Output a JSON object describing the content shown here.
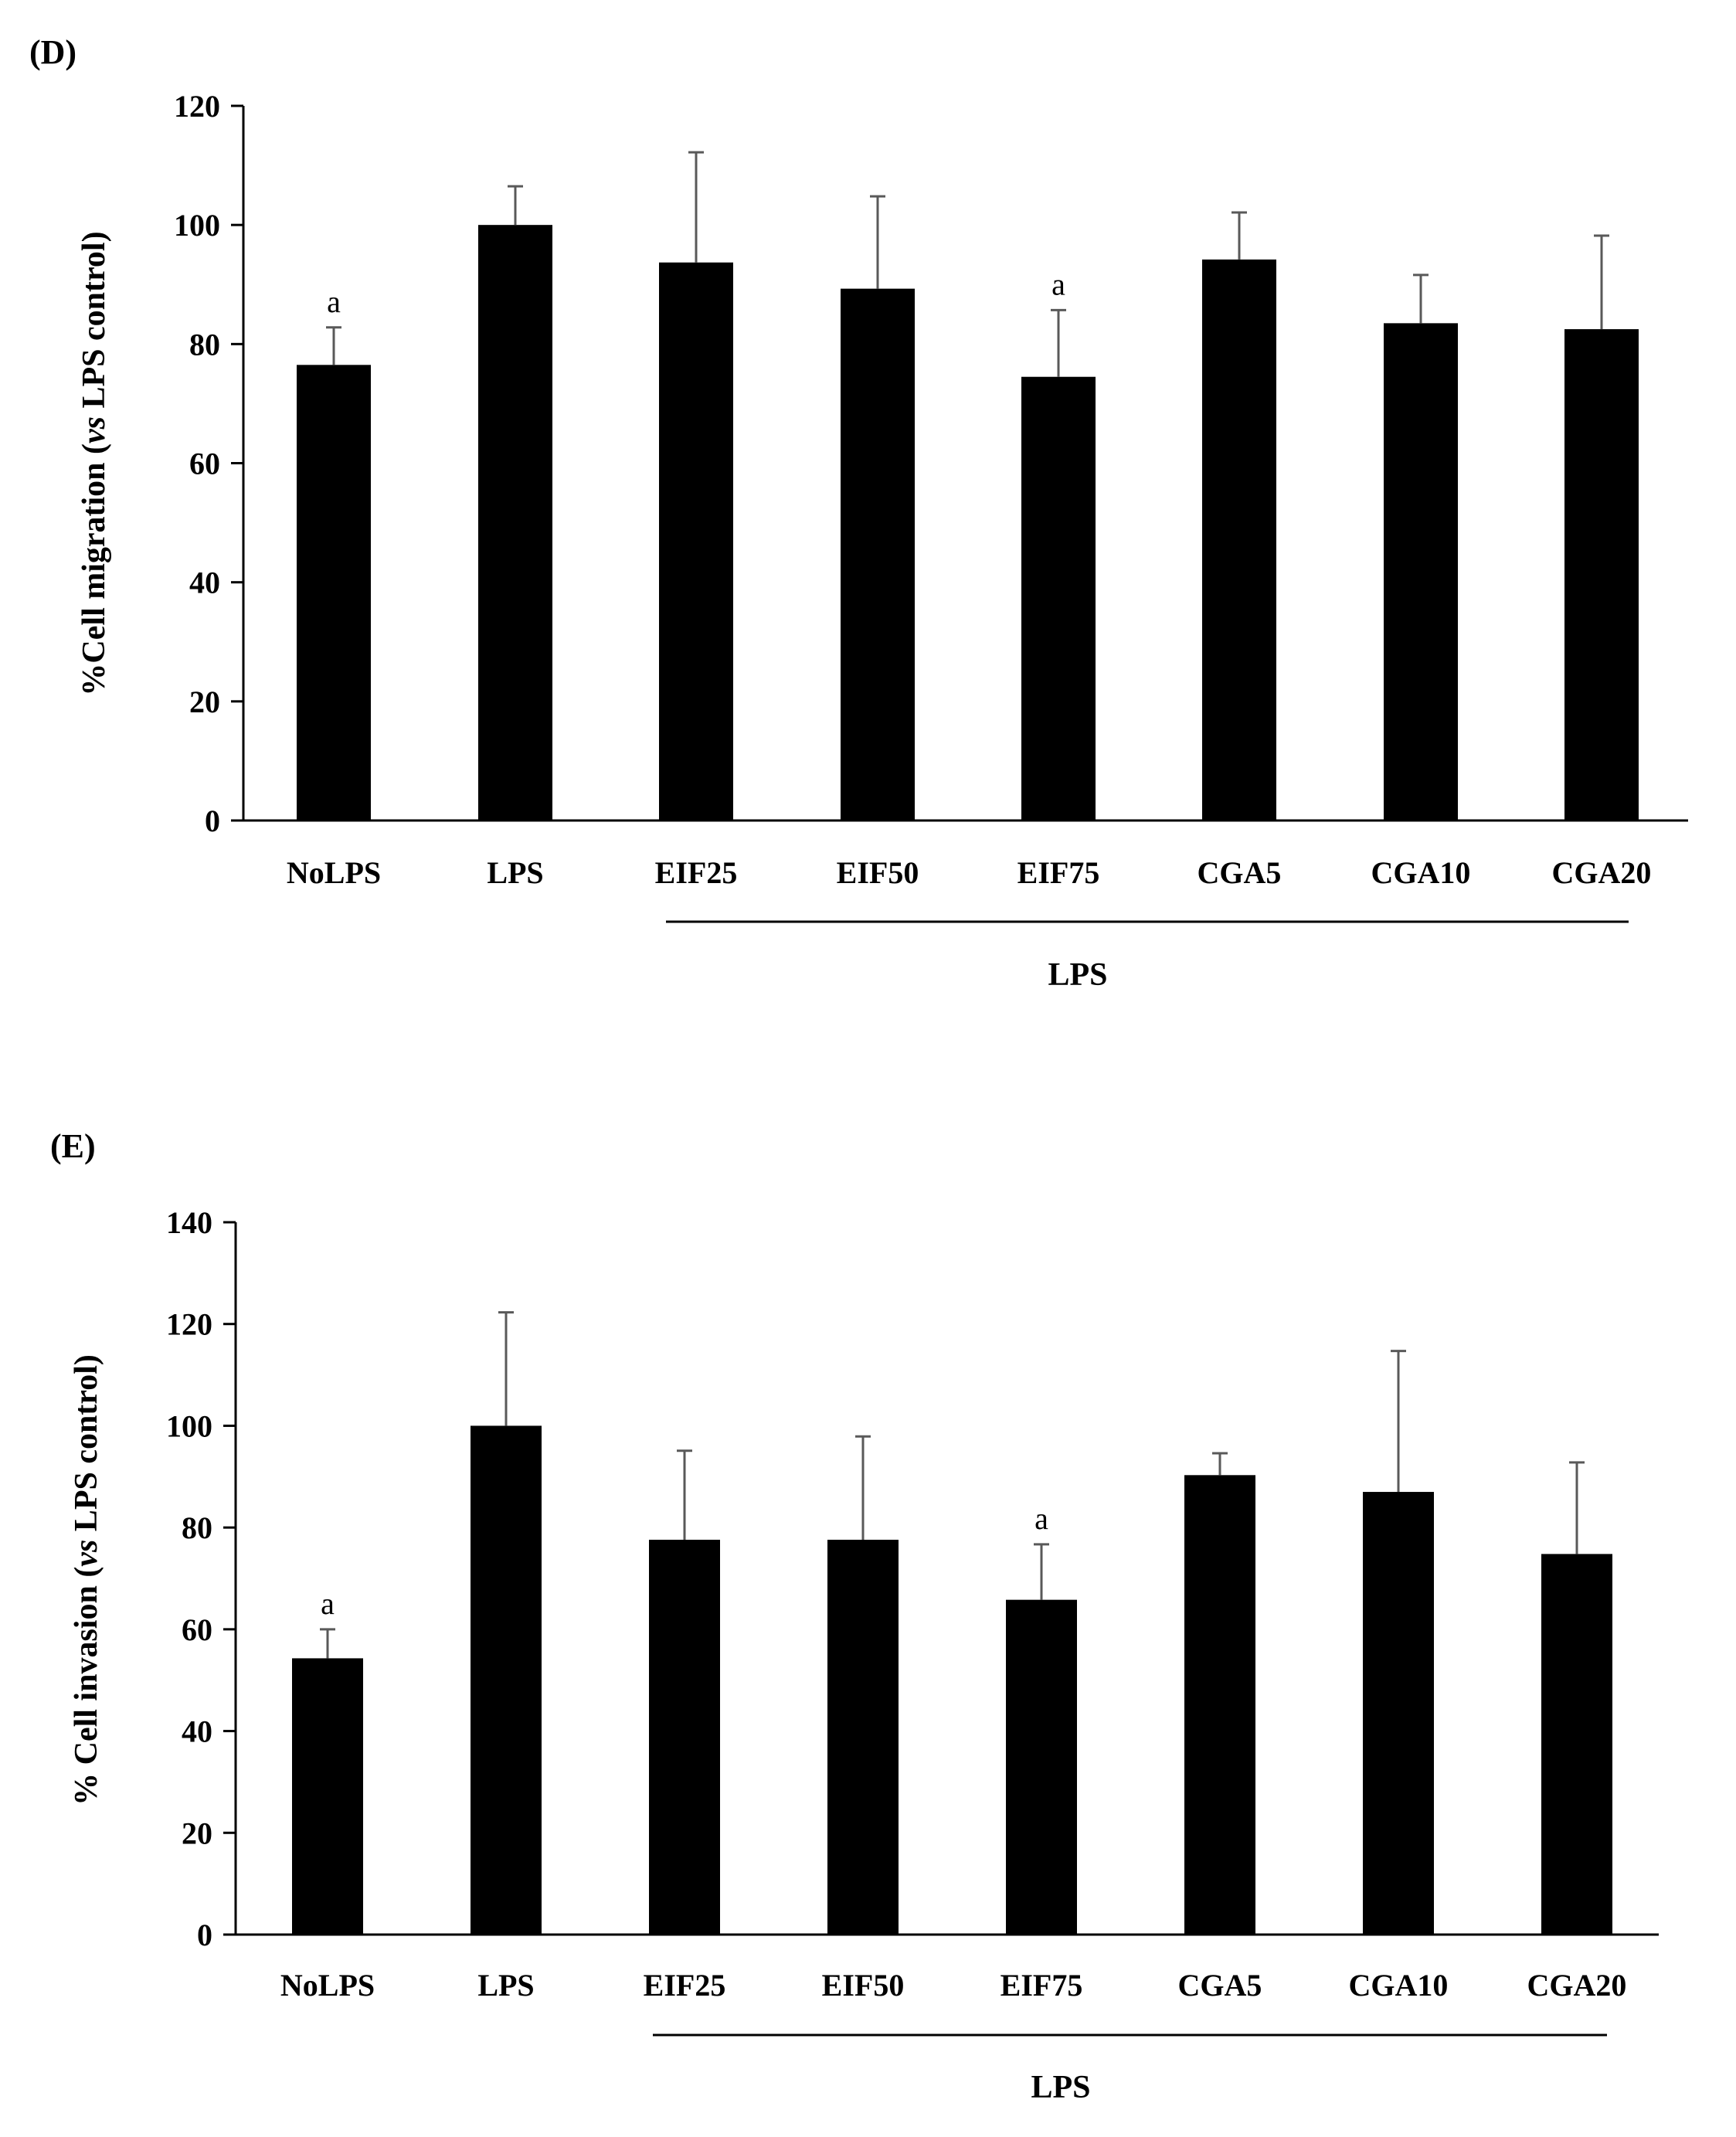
{
  "chart_data": [
    {
      "type": "bar",
      "panel": "(D)",
      "ylabel": "%Cell migration",
      "ylabel_italic": "vs",
      "ylabel_suffix": "LPS control)",
      "ylabel_prefix": "(",
      "ylim": [
        0,
        120
      ],
      "ytick_step": 20,
      "yticks": [
        "0",
        "20",
        "40",
        "60",
        "80",
        "100",
        "120"
      ],
      "categories": [
        "NoLPS",
        "LPS",
        "EIF25",
        "EIF50",
        "EIF75",
        "CGA5",
        "CGA10",
        "CGA20"
      ],
      "values": [
        76.5,
        100,
        93.7,
        89.3,
        74.5,
        94.2,
        83.5,
        82.5
      ],
      "errors": [
        6.3,
        6.5,
        18.5,
        15.5,
        11.2,
        7.9,
        8.1,
        15.7
      ],
      "annotations": [
        "a",
        "",
        "",
        "",
        "a",
        "",
        "",
        ""
      ],
      "group_label": "LPS",
      "color": "#000000",
      "error_color": "#595959"
    },
    {
      "type": "bar",
      "panel": "(E)",
      "ylabel": "% Cell invasion",
      "ylabel_italic": "vs",
      "ylabel_suffix": "LPS control)",
      "ylabel_prefix": "(",
      "ylim": [
        0,
        140
      ],
      "ytick_step": 20,
      "yticks": [
        "0",
        "20",
        "40",
        "60",
        "80",
        "100",
        "120",
        "140"
      ],
      "categories": [
        "NoLPS",
        "LPS",
        "EIF25",
        "EIF50",
        "EIF75",
        "CGA5",
        "CGA10",
        "CGA20"
      ],
      "values": [
        54.3,
        100,
        77.6,
        77.6,
        65.8,
        90.3,
        87,
        74.8
      ],
      "errors": [
        5.7,
        22.3,
        17.5,
        20.3,
        10.9,
        4.3,
        27.7,
        18
      ],
      "annotations": [
        "a",
        "",
        "",
        "",
        "a",
        "",
        "",
        ""
      ],
      "group_label": "LPS",
      "color": "#000000",
      "error_color": "#595959"
    }
  ]
}
